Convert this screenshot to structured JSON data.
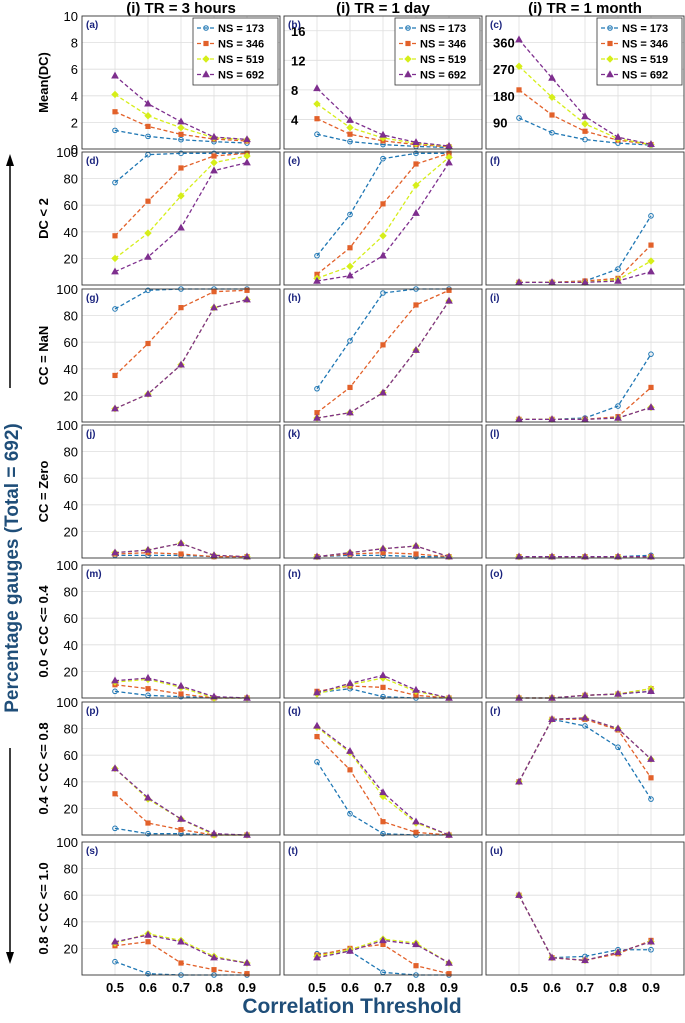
{
  "chart_data": {
    "type": "line",
    "layout": "7x3 grid of subplots",
    "x": [
      0.5,
      0.6,
      0.7,
      0.8,
      0.9
    ],
    "x_tick_labels": [
      "0.5",
      "0.6",
      "0.7",
      "0.8",
      "0.9"
    ],
    "xlim": [
      0.4,
      1.0
    ],
    "xlabel": "Correlation Threshold",
    "side_label": "Percentage gauges (Total = 692)",
    "columns": [
      "(i) TR = 3 hours",
      "(i) TR = 1 day",
      "(i) TR = 1 month"
    ],
    "legend": {
      "placement": "top-right",
      "entries": [
        "NS = 173",
        "NS = 346",
        "NS = 519",
        "NS = 692"
      ]
    },
    "series_styles": [
      {
        "name": "NS = 173",
        "color": "#1f77b4",
        "marker": "circle"
      },
      {
        "name": "NS = 346",
        "color": "#e2612a",
        "marker": "square"
      },
      {
        "name": "NS = 519",
        "color": "#d6ee1a",
        "marker": "diamond"
      },
      {
        "name": "NS = 692",
        "color": "#7e2f8e",
        "marker": "triangle"
      }
    ],
    "rows": [
      {
        "ylabel": "Mean(DC)",
        "panels": [
          {
            "label": "(a)",
            "ylim": [
              0,
              10
            ],
            "yticks": [
              0,
              2,
              4,
              6,
              8,
              10
            ],
            "show_ytick_labels": true,
            "series": [
              [
                1.4,
                0.95,
                0.7,
                0.55,
                0.45
              ],
              [
                2.8,
                1.7,
                1.1,
                0.75,
                0.6
              ],
              [
                4.1,
                2.5,
                1.6,
                0.85,
                0.7
              ],
              [
                5.5,
                3.4,
                2.05,
                0.9,
                0.72
              ]
            ]
          },
          {
            "label": "(b)",
            "ylim": [
              0,
              18
            ],
            "yticks": [
              4,
              8,
              12,
              16
            ],
            "show_ytick_labels": true,
            "series": [
              [
                2.0,
                1.0,
                0.6,
                0.35,
                0.2
              ],
              [
                4.1,
                2.0,
                1.1,
                0.6,
                0.3
              ],
              [
                6.1,
                2.9,
                1.5,
                0.75,
                0.35
              ],
              [
                8.2,
                3.9,
                1.9,
                0.9,
                0.4
              ]
            ]
          },
          {
            "label": "(c)",
            "ylim": [
              0,
              450
            ],
            "yticks": [
              90,
              180,
              270,
              360
            ],
            "show_ytick_labels": true,
            "series": [
              [
                105,
                55,
                32,
                20,
                13
              ],
              [
                200,
                115,
                60,
                30,
                15
              ],
              [
                280,
                175,
                85,
                35,
                15
              ],
              [
                370,
                240,
                110,
                40,
                16
              ]
            ]
          }
        ]
      },
      {
        "ylabel": "DC < 2",
        "panels": [
          {
            "label": "(d)",
            "ylim": [
              0,
              100
            ],
            "yticks": [
              20,
              40,
              60,
              80,
              100
            ],
            "show_ytick_labels": true,
            "series": [
              [
                77,
                98,
                99,
                99,
                99
              ],
              [
                37,
                63,
                88,
                97,
                99
              ],
              [
                20,
                39,
                67,
                92,
                97
              ],
              [
                10,
                21,
                43,
                86,
                92
              ]
            ]
          },
          {
            "label": "(e)",
            "ylim": [
              0,
              100
            ],
            "yticks": [
              20,
              40,
              60,
              80,
              100
            ],
            "show_ytick_labels": false,
            "series": [
              [
                22,
                53,
                95,
                99,
                99
              ],
              [
                8,
                28,
                61,
                91,
                99
              ],
              [
                5,
                14,
                37,
                75,
                96
              ],
              [
                3,
                7,
                22,
                54,
                92
              ]
            ]
          },
          {
            "label": "(f)",
            "ylim": [
              0,
              100
            ],
            "yticks": [
              20,
              40,
              60,
              80,
              100
            ],
            "show_ytick_labels": false,
            "series": [
              [
                2,
                2,
                3,
                12,
                52
              ],
              [
                2,
                2,
                3,
                5,
                30
              ],
              [
                2,
                2,
                2,
                4,
                18
              ],
              [
                2,
                2,
                2,
                3,
                10
              ]
            ]
          }
        ]
      },
      {
        "ylabel": "CC = NaN",
        "panels": [
          {
            "label": "(g)",
            "ylim": [
              0,
              100
            ],
            "yticks": [
              20,
              40,
              60,
              80,
              100
            ],
            "show_ytick_labels": true,
            "series": [
              [
                85,
                99,
                100,
                100,
                100
              ],
              [
                35,
                59,
                86,
                98,
                99
              ],
              [
                10,
                21,
                43,
                86,
                92
              ],
              [
                10,
                21,
                43,
                86,
                92
              ]
            ]
          },
          {
            "label": "(h)",
            "ylim": [
              0,
              100
            ],
            "yticks": [
              20,
              40,
              60,
              80,
              100
            ],
            "show_ytick_labels": false,
            "series": [
              [
                25,
                61,
                97,
                100,
                100
              ],
              [
                7,
                26,
                58,
                88,
                99
              ],
              [
                3,
                7,
                22,
                54,
                91
              ],
              [
                3,
                7,
                22,
                54,
                91
              ]
            ]
          },
          {
            "label": "(i)",
            "ylim": [
              0,
              100
            ],
            "yticks": [
              20,
              40,
              60,
              80,
              100
            ],
            "show_ytick_labels": false,
            "series": [
              [
                2,
                2,
                3,
                12,
                51
              ],
              [
                2,
                2,
                2,
                4,
                26
              ],
              [
                2,
                2,
                2,
                3,
                11
              ],
              [
                2,
                2,
                2,
                3,
                11
              ]
            ]
          }
        ]
      },
      {
        "ylabel": "CC = Zero",
        "panels": [
          {
            "label": "(j)",
            "ylim": [
              0,
              100
            ],
            "yticks": [
              20,
              40,
              60,
              80,
              100
            ],
            "show_ytick_labels": true,
            "series": [
              [
                2,
                2,
                2,
                1,
                1
              ],
              [
                3,
                4,
                3,
                1,
                1
              ],
              [
                4,
                6,
                11,
                2,
                1
              ],
              [
                4,
                6,
                11,
                2,
                1
              ]
            ]
          },
          {
            "label": "(k)",
            "ylim": [
              0,
              100
            ],
            "yticks": [
              20,
              40,
              60,
              80,
              100
            ],
            "show_ytick_labels": false,
            "series": [
              [
                1,
                2,
                2,
                1,
                1
              ],
              [
                1,
                3,
                4,
                3,
                1
              ],
              [
                1,
                4,
                7,
                9,
                1
              ],
              [
                1,
                4,
                7,
                9,
                1
              ]
            ]
          },
          {
            "label": "(l)",
            "ylim": [
              0,
              100
            ],
            "yticks": [
              20,
              40,
              60,
              80,
              100
            ],
            "show_ytick_labels": false,
            "series": [
              [
                1,
                1,
                1,
                1,
                2
              ],
              [
                1,
                1,
                1,
                1,
                1
              ],
              [
                1,
                1,
                1,
                1,
                1
              ],
              [
                1,
                1,
                1,
                1,
                1
              ]
            ]
          }
        ]
      },
      {
        "ylabel": "0.0 < CC <= 0.4",
        "panels": [
          {
            "label": "(m)",
            "ylim": [
              0,
              100
            ],
            "yticks": [
              20,
              40,
              60,
              80,
              100
            ],
            "show_ytick_labels": true,
            "series": [
              [
                5,
                2,
                1,
                0,
                0
              ],
              [
                10,
                7,
                3,
                0,
                0
              ],
              [
                12,
                14,
                8,
                0,
                0
              ],
              [
                13,
                15,
                9,
                1,
                0
              ]
            ]
          },
          {
            "label": "(n)",
            "ylim": [
              0,
              100
            ],
            "yticks": [
              20,
              40,
              60,
              80,
              100
            ],
            "show_ytick_labels": false,
            "series": [
              [
                4,
                7,
                1,
                0,
                0
              ],
              [
                5,
                9,
                8,
                2,
                0
              ],
              [
                3,
                10,
                15,
                5,
                0
              ],
              [
                4,
                11,
                17,
                6,
                0
              ]
            ]
          },
          {
            "label": "(o)",
            "ylim": [
              0,
              100
            ],
            "yticks": [
              20,
              40,
              60,
              80,
              100
            ],
            "show_ytick_labels": false,
            "series": [
              [
                0,
                0,
                2,
                3,
                5
              ],
              [
                0,
                0,
                2,
                3,
                7
              ],
              [
                0,
                0,
                2,
                3,
                7
              ],
              [
                0,
                0,
                2,
                3,
                5
              ]
            ]
          }
        ]
      },
      {
        "ylabel": "0.4 < CC <= 0.8",
        "panels": [
          {
            "label": "(p)",
            "ylim": [
              0,
              100
            ],
            "yticks": [
              20,
              40,
              60,
              80,
              100
            ],
            "show_ytick_labels": true,
            "series": [
              [
                5,
                1,
                1,
                0,
                0
              ],
              [
                31,
                9,
                4,
                0,
                0
              ],
              [
                50,
                27,
                12,
                0,
                0
              ],
              [
                50,
                28,
                12,
                1,
                0
              ]
            ]
          },
          {
            "label": "(q)",
            "ylim": [
              0,
              100
            ],
            "yticks": [
              20,
              40,
              60,
              80,
              100
            ],
            "show_ytick_labels": false,
            "series": [
              [
                55,
                16,
                1,
                0,
                0
              ],
              [
                74,
                49,
                10,
                2,
                0
              ],
              [
                81,
                62,
                29,
                9,
                0
              ],
              [
                82,
                63,
                32,
                10,
                0
              ]
            ]
          },
          {
            "label": "(r)",
            "ylim": [
              0,
              100
            ],
            "yticks": [
              20,
              40,
              60,
              80,
              100
            ],
            "show_ytick_labels": false,
            "series": [
              [
                40,
                87,
                82,
                66,
                27
              ],
              [
                40,
                87,
                87,
                79,
                43
              ],
              [
                40,
                87,
                88,
                80,
                57
              ],
              [
                40,
                87,
                88,
                80,
                57
              ]
            ]
          }
        ]
      },
      {
        "ylabel": "0.8 < CC <= 1.0",
        "panels": [
          {
            "label": "(s)",
            "ylim": [
              0,
              100
            ],
            "yticks": [
              20,
              40,
              60,
              80,
              100
            ],
            "show_ytick_labels": true,
            "series": [
              [
                10,
                1,
                0,
                0,
                0
              ],
              [
                22,
                25,
                9,
                4,
                1
              ],
              [
                24,
                31,
                26,
                14,
                9
              ],
              [
                25,
                30,
                25,
                13,
                9
              ]
            ]
          },
          {
            "label": "(t)",
            "ylim": [
              0,
              100
            ],
            "yticks": [
              20,
              40,
              60,
              80,
              100
            ],
            "show_ytick_labels": false,
            "series": [
              [
                16,
                18,
                2,
                0,
                0
              ],
              [
                15,
                20,
                23,
                7,
                1
              ],
              [
                14,
                19,
                27,
                24,
                9
              ],
              [
                13,
                18,
                26,
                23,
                9
              ]
            ]
          },
          {
            "label": "(u)",
            "ylim": [
              0,
              100
            ],
            "yticks": [
              20,
              40,
              60,
              80,
              100
            ],
            "show_ytick_labels": false,
            "series": [
              [
                60,
                13,
                14,
                19,
                19
              ],
              [
                60,
                13,
                11,
                16,
                26
              ],
              [
                60,
                13,
                11,
                17,
                25
              ],
              [
                60,
                13,
                11,
                17,
                25
              ]
            ]
          }
        ]
      }
    ]
  }
}
